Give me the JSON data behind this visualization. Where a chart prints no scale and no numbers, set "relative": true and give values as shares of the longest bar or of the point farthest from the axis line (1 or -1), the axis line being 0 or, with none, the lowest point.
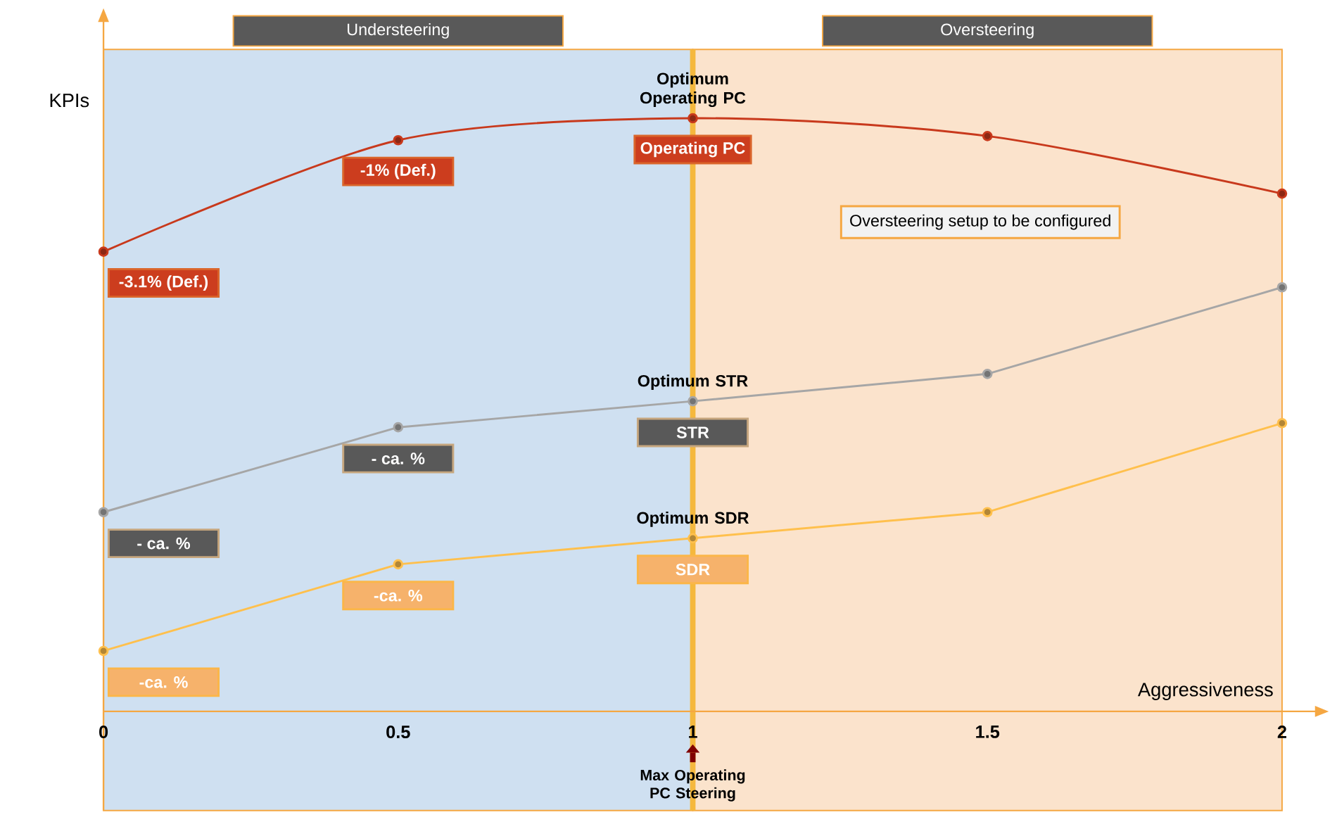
{
  "chart_data": {
    "type": "line",
    "relative": true,
    "xlabel": "Aggressiveness",
    "ylabel": "KPIs",
    "x": [
      0,
      0.5,
      1,
      1.5,
      2
    ],
    "xlim": [
      0,
      2
    ],
    "xticks": [
      0,
      0.5,
      1,
      1.5,
      2
    ],
    "marker": "circle",
    "series": [
      {
        "color": "#c8391c",
        "values": [
          0.775,
          0.963,
          1,
          0.97,
          0.873
        ]
      },
      {
        "color": "#a6a6a6",
        "values": [
          0.336,
          0.479,
          0.523,
          0.569,
          0.715
        ]
      },
      {
        "color": "#ffc04d",
        "values": [
          0.102,
          0.248,
          0.292,
          0.336,
          0.486
        ]
      }
    ],
    "bands": [
      {
        "axis": "x",
        "from": 0,
        "to": 1,
        "label": "Understeering",
        "color": "#cfe0f1"
      },
      {
        "axis": "x",
        "from": 1,
        "to": 2,
        "label": "Oversteering",
        "color": "#fbe3cc"
      }
    ],
    "ref_lines": [
      {
        "axis": "x",
        "value": 1,
        "label": "Max Operating PC Steering",
        "color": "#f5b83d"
      }
    ],
    "annotations": [
      {
        "text": "-3.1% (Def.)",
        "x": 0,
        "y": 0.775
      },
      {
        "text": "-1% (Def.)",
        "x": 0.5,
        "y": 0.963
      },
      {
        "text": "Operating PC",
        "x": 1,
        "y": 1
      },
      {
        "text": "- ca. %",
        "x": 0,
        "y": 0.336
      },
      {
        "text": "- ca. %",
        "x": 0.5,
        "y": 0.479
      },
      {
        "text": "STR",
        "x": 1,
        "y": 0.523
      },
      {
        "text": "-ca. %",
        "x": 0,
        "y": 0.102
      },
      {
        "text": "-ca. %",
        "x": 0.5,
        "y": 0.248
      },
      {
        "text": "SDR",
        "x": 1,
        "y": 0.292
      },
      {
        "text": "Optimum Operating PC",
        "x": 1,
        "y": 1
      },
      {
        "text": "Optimum STR",
        "x": 1,
        "y": 0.523
      },
      {
        "text": "Optimum SDR",
        "x": 1,
        "y": 0.292
      },
      "Oversteering setup to be configured"
    ]
  }
}
